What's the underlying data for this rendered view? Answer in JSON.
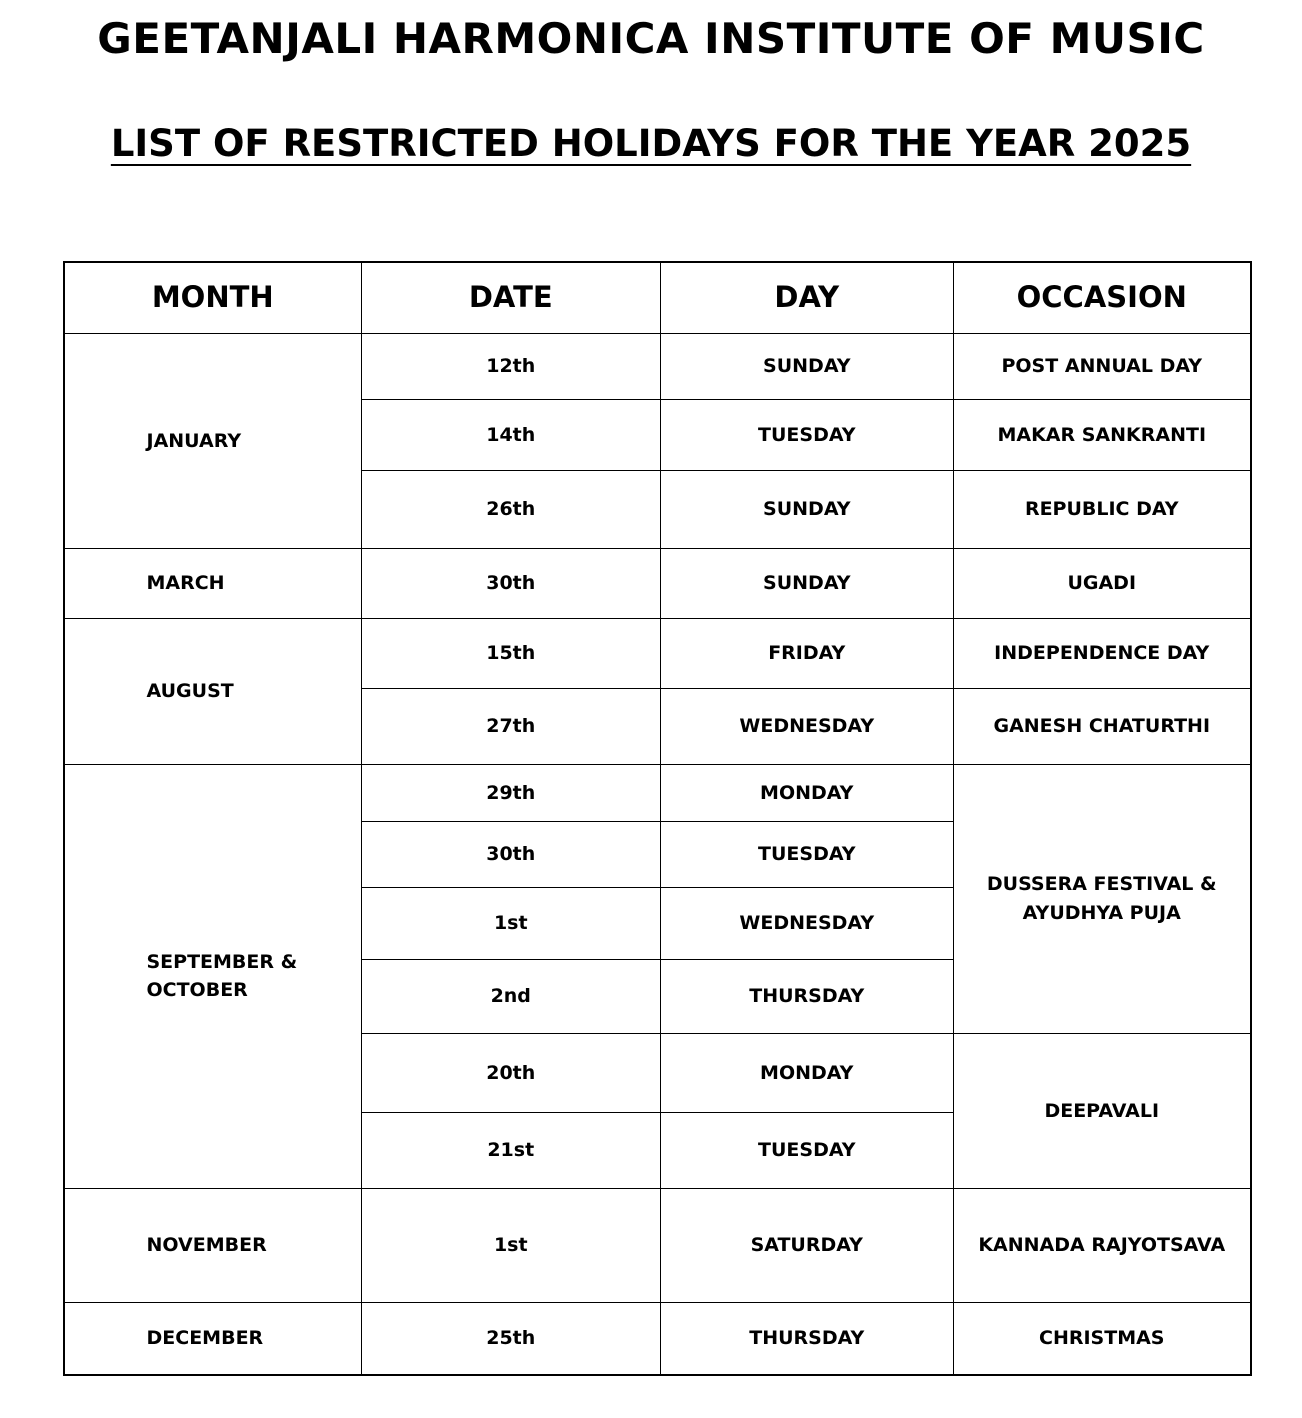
{
  "header": {
    "title": "GEETANJALI HARMONICA INSTITUTE OF MUSIC",
    "subtitle": "LIST OF RESTRICTED HOLIDAYS FOR THE YEAR 2025"
  },
  "table": {
    "columns": [
      "MONTH",
      "DATE",
      "DAY",
      "OCCASION"
    ],
    "groups": [
      {
        "month": "JANUARY",
        "entries": [
          {
            "occasion": "POST ANNUAL DAY",
            "days": [
              {
                "date": "12th",
                "day": "SUNDAY"
              }
            ]
          },
          {
            "occasion": "MAKAR SANKRANTI",
            "days": [
              {
                "date": "14th",
                "day": "TUESDAY"
              }
            ]
          },
          {
            "occasion": "REPUBLIC DAY",
            "days": [
              {
                "date": "26th",
                "day": "SUNDAY"
              }
            ]
          }
        ]
      },
      {
        "month": "MARCH",
        "entries": [
          {
            "occasion": "UGADI",
            "days": [
              {
                "date": "30th",
                "day": "SUNDAY"
              }
            ]
          }
        ]
      },
      {
        "month": "AUGUST",
        "entries": [
          {
            "occasion": "INDEPENDENCE DAY",
            "days": [
              {
                "date": "15th",
                "day": "FRIDAY"
              }
            ]
          },
          {
            "occasion": "GANESH CHATURTHI",
            "days": [
              {
                "date": "27th",
                "day": "WEDNESDAY"
              }
            ]
          }
        ]
      },
      {
        "month": "SEPTEMBER & OCTOBER",
        "entries": [
          {
            "occasion": "DUSSERA FESTIVAL & AYUDHYA PUJA",
            "days": [
              {
                "date": "29th",
                "day": "MONDAY"
              },
              {
                "date": "30th",
                "day": "TUESDAY"
              },
              {
                "date": "1st",
                "day": "WEDNESDAY"
              },
              {
                "date": "2nd",
                "day": "THURSDAY"
              }
            ]
          },
          {
            "occasion": "DEEPAVALI",
            "days": [
              {
                "date": "20th",
                "day": "MONDAY"
              },
              {
                "date": "21st",
                "day": "TUESDAY"
              }
            ]
          }
        ]
      },
      {
        "month": "NOVEMBER",
        "entries": [
          {
            "occasion": "KANNADA RAJYOTSAVA",
            "days": [
              {
                "date": "1st",
                "day": "SATURDAY"
              }
            ]
          }
        ]
      },
      {
        "month": "DECEMBER",
        "entries": [
          {
            "occasion": "CHRISTMAS",
            "days": [
              {
                "date": "25th",
                "day": "THURSDAY"
              }
            ]
          }
        ]
      }
    ]
  }
}
